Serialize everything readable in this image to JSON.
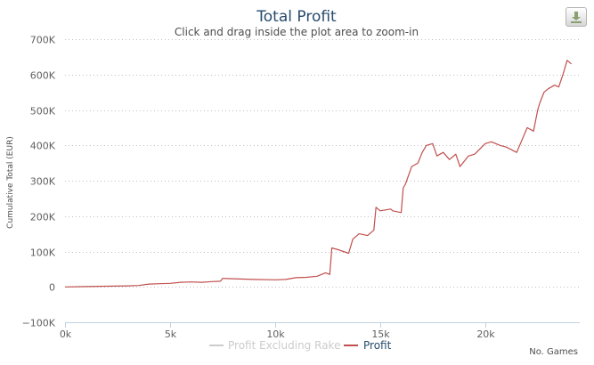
{
  "chart_data": {
    "type": "line",
    "title": "Total Profit",
    "subtitle": "Click and drag inside the plot area to zoom-in",
    "xlabel": "No. Games",
    "ylabel": "Cumulative Total (EUR)",
    "xlim": [
      0,
      24500
    ],
    "ylim": [
      -100000,
      700000
    ],
    "x_ticks": [
      0,
      5000,
      10000,
      15000,
      20000
    ],
    "x_tick_labels": [
      "0k",
      "5k",
      "10k",
      "15k",
      "20k"
    ],
    "y_ticks": [
      -100000,
      0,
      100000,
      200000,
      300000,
      400000,
      500000,
      600000,
      700000
    ],
    "y_tick_labels": [
      "−100K",
      "0",
      "100K",
      "200K",
      "300K",
      "400K",
      "500K",
      "600K",
      "700K"
    ],
    "grid": true,
    "legend_position": "bottom",
    "series": [
      {
        "name": "Profit Excluding Rake",
        "visible": false,
        "color": "#cccccc",
        "x": [],
        "y": []
      },
      {
        "name": "Profit",
        "visible": true,
        "color": "#c0504d",
        "x": [
          0,
          1000,
          2000,
          3000,
          3500,
          4000,
          4500,
          5000,
          5500,
          6000,
          6500,
          7000,
          7400,
          7500,
          8000,
          9000,
          10000,
          10500,
          11000,
          11500,
          12000,
          12400,
          12600,
          12700,
          13000,
          13500,
          13700,
          14000,
          14400,
          14700,
          14800,
          15000,
          15500,
          15600,
          16000,
          16100,
          16200,
          16500,
          16800,
          17000,
          17200,
          17500,
          17700,
          18000,
          18300,
          18600,
          18800,
          19200,
          19500,
          20000,
          20300,
          20700,
          21000,
          21500,
          22000,
          22300,
          22500,
          22600,
          22800,
          23000,
          23300,
          23500,
          23700,
          23800,
          23900,
          24000,
          24100
        ],
        "y": [
          0,
          1000,
          2000,
          3000,
          4000,
          8000,
          9000,
          10000,
          13000,
          14000,
          13000,
          15000,
          16000,
          24000,
          23000,
          21000,
          20000,
          21000,
          26000,
          27000,
          30000,
          40000,
          35000,
          110000,
          105000,
          95000,
          135000,
          150000,
          145000,
          160000,
          225000,
          215000,
          220000,
          215000,
          210000,
          280000,
          290000,
          340000,
          350000,
          380000,
          400000,
          405000,
          370000,
          380000,
          360000,
          375000,
          340000,
          370000,
          375000,
          405000,
          410000,
          400000,
          395000,
          380000,
          450000,
          440000,
          500000,
          520000,
          550000,
          560000,
          570000,
          565000,
          600000,
          620000,
          640000,
          635000,
          630000
        ]
      }
    ]
  },
  "export_button": {
    "icon": "download-icon"
  }
}
